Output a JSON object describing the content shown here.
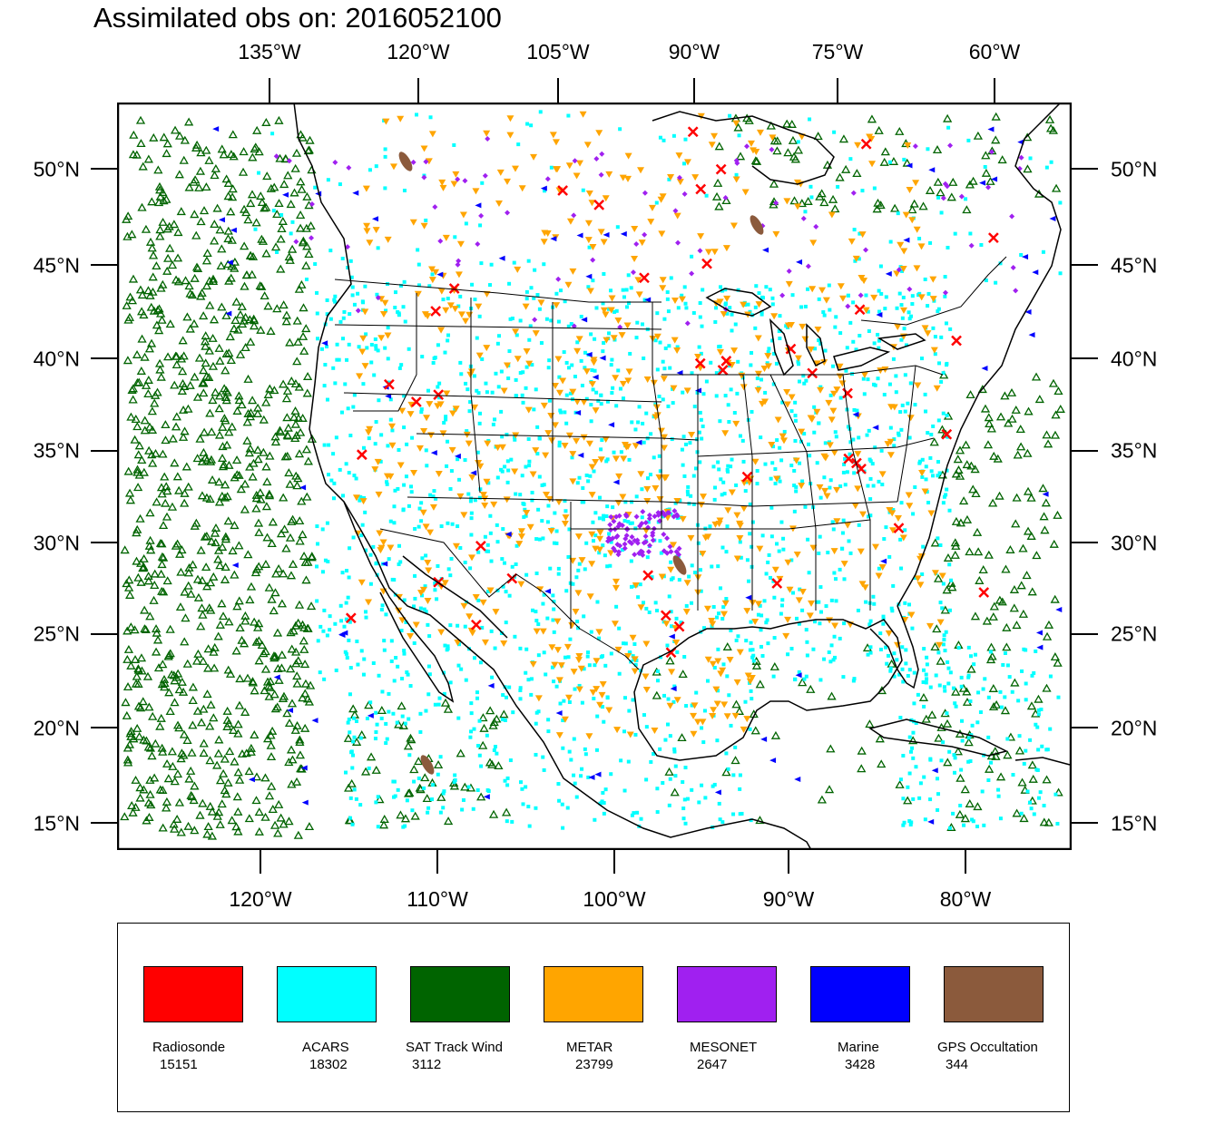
{
  "title": "Assimilated obs on: 2016052100",
  "map": {
    "top_lon_labels": [
      "135°W",
      "120°W",
      "105°W",
      "90°W",
      "75°W",
      "60°W"
    ],
    "bottom_lon_labels": [
      "120°W",
      "110°W",
      "100°W",
      "90°W",
      "80°W"
    ],
    "lat_labels": [
      "50°N",
      "45°N",
      "40°N",
      "35°N",
      "30°N",
      "25°N",
      "20°N",
      "15°N"
    ],
    "land_color": "#ffffff",
    "border_color": "#000000"
  },
  "legend": [
    {
      "label": "Radiosonde",
      "count": "15151",
      "color": "#ff0000",
      "marker": "x"
    },
    {
      "label": "ACARS",
      "count": "18302",
      "color": "#00ffff",
      "marker": "square"
    },
    {
      "label": "SAT Track Wind",
      "count": "3112",
      "color": "#006400",
      "marker": "triangle-up"
    },
    {
      "label": "METAR",
      "count": "23799",
      "color": "#ffa500",
      "marker": "triangle-down"
    },
    {
      "label": "MESONET",
      "count": "2647",
      "color": "#a020f0",
      "marker": "diamond"
    },
    {
      "label": "Marine",
      "count": "3428",
      "color": "#0000ff",
      "marker": "triangle-left"
    },
    {
      "label": "GPS Occultation",
      "count": "344",
      "color": "#8b5a3c",
      "marker": "blob"
    }
  ]
}
